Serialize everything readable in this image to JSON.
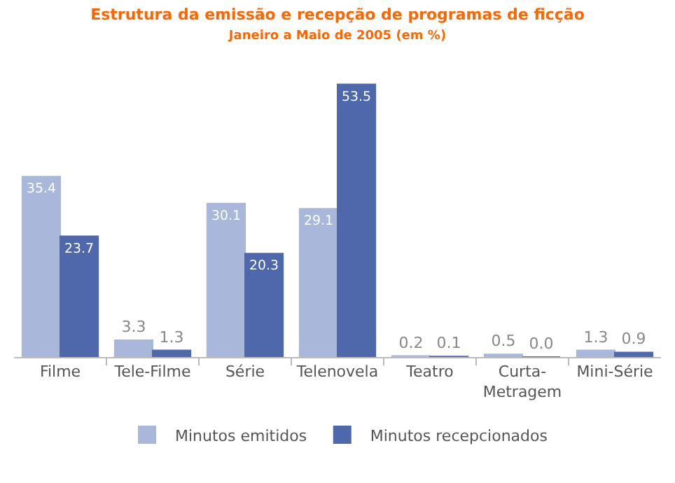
{
  "chart_data": {
    "type": "bar",
    "title": "Estrutura da emissão e recepção de programas de ficção",
    "subtitle": "Janeiro a Maio de 2005 (em %)",
    "categories": [
      "Filme",
      "Tele-Filme",
      "Série",
      "Telenovela",
      "Teatro",
      "Curta-Metragem",
      "Mini-Série"
    ],
    "series": [
      {
        "name": "Minutos emitidos",
        "color": "#a9b7da",
        "values": [
          35.4,
          3.3,
          30.1,
          29.1,
          0.2,
          0.5,
          1.3
        ],
        "value_labels": [
          "35.4",
          "3.3",
          "30.1",
          "29.1",
          "0.2",
          "0.5",
          "1.3"
        ]
      },
      {
        "name": "Minutos recepcionados",
        "color": "#4f67ab",
        "values": [
          23.7,
          1.3,
          20.3,
          53.5,
          0.1,
          0.0,
          0.9
        ],
        "value_labels": [
          "23.7",
          "1.3",
          "20.3",
          "53.5",
          "0.1",
          "0.0",
          "0.9"
        ]
      }
    ],
    "legend": "bottom",
    "grid": false
  }
}
